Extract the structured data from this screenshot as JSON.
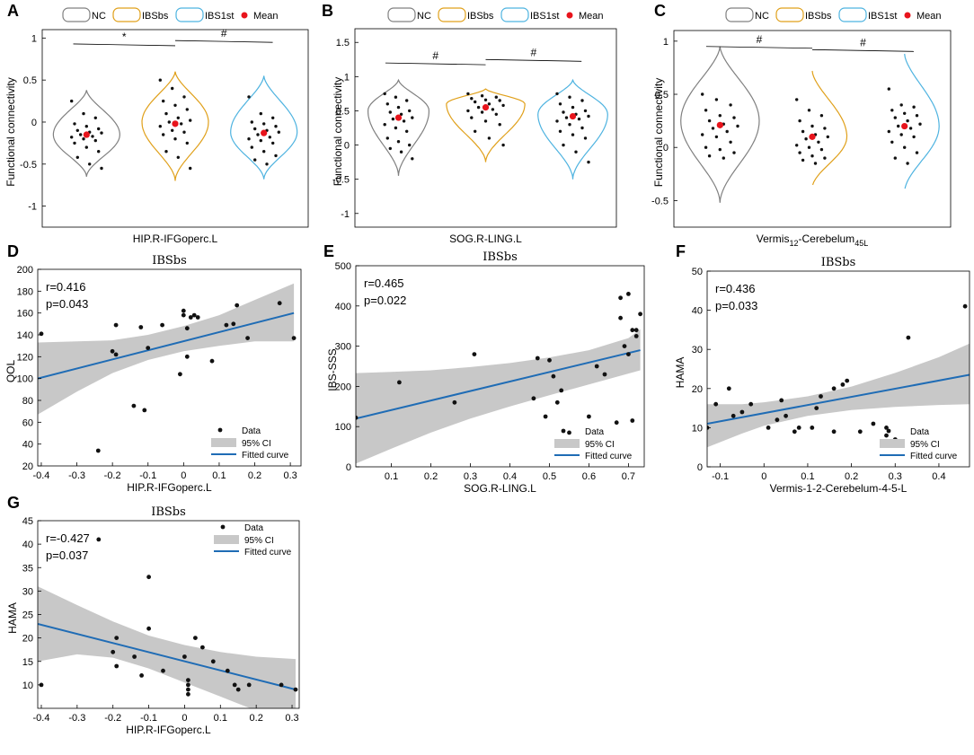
{
  "colors": {
    "NC": "#808080",
    "IBSbs": "#E0A01A",
    "IBS1st": "#4EB3E0",
    "mean": "#E8141C",
    "fit": "#1F6CB5",
    "ci": "#C8C8C8",
    "dot": "#111111"
  },
  "chart_data": [
    {
      "panel": "A",
      "type": "violin",
      "xlabel": "HIP.R-IFGoperc.L",
      "ylabel": "Functional connectivity",
      "ylim": [
        -1.25,
        1.1
      ],
      "yticks": [
        -1,
        -0.5,
        0,
        0.5,
        1
      ],
      "legend": [
        "NC",
        "IBSbs",
        "IBS1st",
        "Mean"
      ],
      "groups": [
        {
          "name": "NC",
          "top": 0.38,
          "bottom": -0.65,
          "mode": -0.15,
          "width": 0.75,
          "mean": -0.15,
          "points": [
            0.25,
            0.1,
            0.05,
            -0.02,
            -0.05,
            -0.08,
            -0.1,
            -0.12,
            -0.13,
            -0.15,
            -0.17,
            -0.18,
            -0.2,
            -0.22,
            -0.25,
            -0.3,
            -0.35,
            -0.42,
            -0.5,
            -0.55
          ]
        },
        {
          "name": "IBSbs",
          "top": 0.6,
          "bottom": -0.7,
          "mode": 0.0,
          "width": 0.75,
          "mean": -0.02,
          "points": [
            0.5,
            0.4,
            0.3,
            0.25,
            0.2,
            0.15,
            0.1,
            0.05,
            0.02,
            0.0,
            -0.02,
            -0.05,
            -0.1,
            -0.12,
            -0.15,
            -0.2,
            -0.25,
            -0.35,
            -0.42,
            -0.55
          ]
        },
        {
          "name": "IBS1st",
          "top": 0.55,
          "bottom": -0.68,
          "mode": -0.12,
          "width": 0.75,
          "mean": -0.13,
          "points": [
            0.3,
            0.1,
            0.05,
            0.0,
            -0.02,
            -0.05,
            -0.08,
            -0.1,
            -0.12,
            -0.15,
            -0.18,
            -0.2,
            -0.22,
            -0.25,
            -0.3,
            -0.35,
            -0.4,
            -0.45,
            -0.5
          ]
        }
      ],
      "sig": [
        {
          "from": 0,
          "to": 1,
          "y": 0.93,
          "label": "*"
        },
        {
          "from": 1,
          "to": 2,
          "y": 0.97,
          "label": "#"
        }
      ]
    },
    {
      "panel": "B",
      "type": "violin",
      "xlabel": "SOG.R-LING.L",
      "ylabel": "Functional connectivity",
      "ylim": [
        -1.2,
        1.7
      ],
      "yticks": [
        -1,
        -0.5,
        0,
        0.5,
        1,
        1.5
      ],
      "legend": [
        "NC",
        "IBSbs",
        "IBS1st",
        "Mean"
      ],
      "groups": [
        {
          "name": "NC",
          "top": 0.95,
          "bottom": -0.45,
          "mode": 0.5,
          "width": 0.7,
          "mean": 0.4,
          "points": [
            0.75,
            0.7,
            0.65,
            0.6,
            0.55,
            0.5,
            0.48,
            0.45,
            0.4,
            0.38,
            0.35,
            0.3,
            0.25,
            0.2,
            0.1,
            0.05,
            0.0,
            -0.05,
            -0.1,
            -0.2
          ]
        },
        {
          "name": "IBSbs",
          "top": 0.82,
          "bottom": -0.25,
          "mode": 0.6,
          "width": 0.9,
          "mean": 0.55,
          "points": [
            0.75,
            0.72,
            0.7,
            0.68,
            0.66,
            0.65,
            0.63,
            0.6,
            0.58,
            0.55,
            0.52,
            0.5,
            0.48,
            0.45,
            0.4,
            0.35,
            0.3,
            0.2,
            0.1,
            0.0
          ]
        },
        {
          "name": "IBS1st",
          "top": 0.95,
          "bottom": -0.5,
          "mode": 0.45,
          "width": 0.8,
          "mean": 0.42,
          "points": [
            0.75,
            0.7,
            0.65,
            0.6,
            0.55,
            0.5,
            0.48,
            0.45,
            0.42,
            0.4,
            0.38,
            0.35,
            0.3,
            0.25,
            0.2,
            0.15,
            0.1,
            0.0,
            -0.1,
            -0.25
          ]
        }
      ],
      "sig": [
        {
          "from": 0,
          "to": 1,
          "y": 1.2,
          "label": "#"
        },
        {
          "from": 1,
          "to": 2,
          "y": 1.25,
          "label": "#"
        }
      ]
    },
    {
      "panel": "C",
      "type": "violin",
      "xlabel": "Vermis",
      "xlabel_sub1": "12",
      "xlabel_mid": "-Cerebelum",
      "xlabel_sub2": "45L",
      "ylabel": "Functional connectivity",
      "ylim": [
        -0.75,
        1.1
      ],
      "yticks": [
        -0.5,
        0,
        0.5,
        1
      ],
      "legend": [
        "NC",
        "IBSbs",
        "IBS1st",
        "Mean"
      ],
      "groups": [
        {
          "name": "NC",
          "top": 0.95,
          "bottom": -0.52,
          "mode": 0.25,
          "width": 0.85,
          "mean": 0.21,
          "points": [
            0.5,
            0.45,
            0.4,
            0.35,
            0.3,
            0.28,
            0.25,
            0.22,
            0.2,
            0.18,
            0.15,
            0.12,
            0.1,
            0.05,
            0.0,
            -0.02,
            -0.05,
            -0.08,
            -0.1
          ]
        },
        {
          "name": "IBSbs",
          "top": 0.72,
          "bottom": -0.38,
          "mode": 0.1,
          "width": 0.75,
          "mean": 0.1,
          "points": [
            0.45,
            0.35,
            0.3,
            0.25,
            0.2,
            0.18,
            0.15,
            0.12,
            0.1,
            0.08,
            0.05,
            0.02,
            0.0,
            -0.02,
            -0.05,
            -0.08,
            -0.1,
            -0.12,
            -0.15
          ]
        },
        {
          "name": "IBS1st",
          "top": 0.88,
          "bottom": -0.42,
          "mode": 0.2,
          "width": 0.75,
          "mean": 0.2,
          "points": [
            0.55,
            0.4,
            0.38,
            0.35,
            0.32,
            0.3,
            0.28,
            0.25,
            0.22,
            0.2,
            0.18,
            0.15,
            0.12,
            0.1,
            0.05,
            0.0,
            -0.05,
            -0.1,
            -0.15
          ]
        }
      ],
      "sig": [
        {
          "from": 0,
          "to": 1,
          "y": 0.95,
          "label": "#"
        },
        {
          "from": 1,
          "to": 2,
          "y": 0.92,
          "label": "#"
        }
      ]
    },
    {
      "panel": "D",
      "type": "scatter",
      "title": "IBSbs",
      "xlabel": "HIP.R-IFGoperc.L",
      "ylabel": "QOL",
      "stat_r": "r=0.416",
      "stat_p": "p=0.043",
      "xlim": [
        -0.41,
        0.33
      ],
      "ylim": [
        20,
        200
      ],
      "xticks": [
        -0.4,
        -0.3,
        -0.2,
        -0.1,
        0,
        0.1,
        0.2,
        0.3
      ],
      "yticks": [
        20,
        40,
        60,
        80,
        100,
        120,
        140,
        160,
        180,
        200
      ],
      "fit": {
        "x0": -0.41,
        "y0": 100,
        "x1": 0.31,
        "y1": 160
      },
      "ci_upper": [
        [
          -0.41,
          133
        ],
        [
          -0.3,
          134
        ],
        [
          -0.2,
          135
        ],
        [
          -0.1,
          140
        ],
        [
          0,
          148
        ],
        [
          0.1,
          158
        ],
        [
          0.2,
          172
        ],
        [
          0.31,
          187
        ]
      ],
      "ci_lower": [
        [
          -0.41,
          67
        ],
        [
          -0.3,
          88
        ],
        [
          -0.2,
          105
        ],
        [
          -0.1,
          117
        ],
        [
          0,
          125
        ],
        [
          0.1,
          130
        ],
        [
          0.2,
          134
        ],
        [
          0.31,
          134
        ]
      ],
      "points": [
        [
          -0.4,
          141
        ],
        [
          -0.24,
          34
        ],
        [
          -0.2,
          125
        ],
        [
          -0.19,
          122
        ],
        [
          -0.19,
          149
        ],
        [
          -0.14,
          75
        ],
        [
          -0.12,
          147
        ],
        [
          -0.11,
          71
        ],
        [
          -0.1,
          128
        ],
        [
          -0.06,
          149
        ],
        [
          -0.01,
          104
        ],
        [
          0.0,
          158
        ],
        [
          0.0,
          162
        ],
        [
          0.01,
          146
        ],
        [
          0.01,
          120
        ],
        [
          0.02,
          156
        ],
        [
          0.03,
          158
        ],
        [
          0.04,
          156
        ],
        [
          0.08,
          116
        ],
        [
          0.12,
          149
        ],
        [
          0.14,
          150
        ],
        [
          0.15,
          167
        ],
        [
          0.18,
          137
        ],
        [
          0.27,
          169
        ],
        [
          0.31,
          137
        ]
      ],
      "legend": [
        "Data",
        "95% CI",
        "Fitted curve"
      ],
      "legend_pos": "bottom-right"
    },
    {
      "panel": "E",
      "type": "scatter",
      "title": "IBSbs",
      "xlabel": "SOG.R-LING.L",
      "ylabel": "IBS-SSS",
      "stat_r": "r=0.465",
      "stat_p": "p=0.022",
      "xlim": [
        0.01,
        0.74
      ],
      "ylim": [
        0,
        500
      ],
      "xticks": [
        0.1,
        0.2,
        0.3,
        0.4,
        0.5,
        0.6,
        0.7
      ],
      "yticks": [
        0,
        100,
        200,
        300,
        400,
        500
      ],
      "fit": {
        "x0": 0.01,
        "y0": 120,
        "x1": 0.73,
        "y1": 290
      },
      "ci_upper": [
        [
          0.01,
          233
        ],
        [
          0.1,
          236
        ],
        [
          0.2,
          240
        ],
        [
          0.3,
          248
        ],
        [
          0.4,
          258
        ],
        [
          0.5,
          272
        ],
        [
          0.6,
          290
        ],
        [
          0.7,
          320
        ],
        [
          0.73,
          342
        ]
      ],
      "ci_lower": [
        [
          0.01,
          8
        ],
        [
          0.1,
          45
        ],
        [
          0.2,
          85
        ],
        [
          0.3,
          120
        ],
        [
          0.4,
          150
        ],
        [
          0.5,
          178
        ],
        [
          0.6,
          205
        ],
        [
          0.7,
          232
        ],
        [
          0.73,
          240
        ]
      ],
      "points": [
        [
          0.01,
          122
        ],
        [
          0.12,
          210
        ],
        [
          0.26,
          160
        ],
        [
          0.31,
          280
        ],
        [
          0.46,
          170
        ],
        [
          0.47,
          270
        ],
        [
          0.49,
          125
        ],
        [
          0.5,
          265
        ],
        [
          0.51,
          225
        ],
        [
          0.52,
          160
        ],
        [
          0.53,
          190
        ],
        [
          0.55,
          85
        ],
        [
          0.6,
          125
        ],
        [
          0.62,
          250
        ],
        [
          0.64,
          230
        ],
        [
          0.67,
          110
        ],
        [
          0.68,
          420
        ],
        [
          0.68,
          370
        ],
        [
          0.69,
          300
        ],
        [
          0.7,
          430
        ],
        [
          0.7,
          280
        ],
        [
          0.71,
          340
        ],
        [
          0.72,
          325
        ],
        [
          0.72,
          340
        ],
        [
          0.71,
          115
        ],
        [
          0.73,
          380
        ]
      ],
      "legend": [
        "Data",
        "95% CI",
        "Fitted curve"
      ],
      "legend_pos": "bottom-right"
    },
    {
      "panel": "F",
      "type": "scatter",
      "title": "IBSbs",
      "xlabel": "Vermis-1-2-Cerebelum-4-5-L",
      "ylabel": "HAMA",
      "stat_r": "r=0.436",
      "stat_p": "p=0.033",
      "xlim": [
        -0.13,
        0.47
      ],
      "ylim": [
        0,
        50
      ],
      "xticks": [
        -0.1,
        0,
        0.1,
        0.2,
        0.3,
        0.4
      ],
      "yticks": [
        0,
        10,
        20,
        30,
        40,
        50
      ],
      "fit": {
        "x0": -0.13,
        "y0": 11,
        "x1": 0.47,
        "y1": 23.5
      },
      "ci_upper": [
        [
          -0.13,
          16
        ],
        [
          -0.05,
          16
        ],
        [
          0.0,
          16.5
        ],
        [
          0.1,
          18
        ],
        [
          0.2,
          20.5
        ],
        [
          0.3,
          24
        ],
        [
          0.4,
          28
        ],
        [
          0.47,
          31.5
        ]
      ],
      "ci_lower": [
        [
          -0.13,
          5
        ],
        [
          -0.05,
          8.5
        ],
        [
          0.0,
          10.5
        ],
        [
          0.1,
          13
        ],
        [
          0.2,
          14.5
        ],
        [
          0.3,
          15.3
        ],
        [
          0.4,
          15.8
        ],
        [
          0.47,
          16
        ]
      ],
      "points": [
        [
          -0.13,
          10
        ],
        [
          -0.11,
          16
        ],
        [
          -0.08,
          20
        ],
        [
          -0.07,
          13
        ],
        [
          -0.05,
          14
        ],
        [
          -0.03,
          16
        ],
        [
          0.01,
          10
        ],
        [
          0.03,
          12
        ],
        [
          0.04,
          17
        ],
        [
          0.05,
          13
        ],
        [
          0.07,
          9
        ],
        [
          0.08,
          10
        ],
        [
          0.11,
          10
        ],
        [
          0.12,
          15
        ],
        [
          0.13,
          18
        ],
        [
          0.16,
          20
        ],
        [
          0.16,
          9
        ],
        [
          0.18,
          21
        ],
        [
          0.19,
          22
        ],
        [
          0.22,
          9
        ],
        [
          0.25,
          11
        ],
        [
          0.28,
          10
        ],
        [
          0.28,
          8
        ],
        [
          0.3,
          7
        ],
        [
          0.33,
          33
        ],
        [
          0.46,
          41
        ]
      ],
      "legend": [
        "Data",
        "95% CI",
        "Fitted curve"
      ],
      "legend_pos": "bottom-right"
    },
    {
      "panel": "G",
      "type": "scatter",
      "title": "IBSbs",
      "xlabel": "HIP.R-IFGoperc.L",
      "ylabel": "HAMA",
      "stat_r": "r=-0.427",
      "stat_p": "p=0.037",
      "xlim": [
        -0.41,
        0.32
      ],
      "ylim": [
        5,
        45
      ],
      "xticks": [
        -0.4,
        -0.3,
        -0.2,
        -0.1,
        0,
        0.1,
        0.2,
        0.3
      ],
      "yticks": [
        10,
        15,
        20,
        25,
        30,
        35,
        40,
        45
      ],
      "fit": {
        "x0": -0.41,
        "y0": 23,
        "x1": 0.31,
        "y1": 9
      },
      "ci_upper": [
        [
          -0.41,
          31
        ],
        [
          -0.3,
          27
        ],
        [
          -0.2,
          23.5
        ],
        [
          -0.1,
          20.5
        ],
        [
          0,
          18.5
        ],
        [
          0.1,
          17
        ],
        [
          0.2,
          16
        ],
        [
          0.31,
          15.5
        ]
      ],
      "ci_lower": [
        [
          -0.41,
          15
        ],
        [
          -0.3,
          16.5
        ],
        [
          -0.2,
          15.8
        ],
        [
          -0.1,
          13.5
        ],
        [
          0,
          10.5
        ],
        [
          0.1,
          7.5
        ],
        [
          0.2,
          4.5
        ],
        [
          0.31,
          2.5
        ]
      ],
      "points": [
        [
          -0.4,
          10
        ],
        [
          -0.24,
          41
        ],
        [
          -0.2,
          17
        ],
        [
          -0.19,
          20
        ],
        [
          -0.19,
          14
        ],
        [
          -0.14,
          16
        ],
        [
          -0.12,
          12
        ],
        [
          -0.1,
          33
        ],
        [
          -0.1,
          22
        ],
        [
          -0.06,
          13
        ],
        [
          0.0,
          16
        ],
        [
          0.01,
          11
        ],
        [
          0.01,
          10
        ],
        [
          0.01,
          9
        ],
        [
          0.01,
          8
        ],
        [
          0.03,
          20
        ],
        [
          0.05,
          18
        ],
        [
          0.08,
          15
        ],
        [
          0.12,
          13
        ],
        [
          0.14,
          10
        ],
        [
          0.15,
          9
        ],
        [
          0.18,
          10
        ],
        [
          0.27,
          10
        ],
        [
          0.31,
          9
        ]
      ],
      "legend": [
        "Data",
        "95% CI",
        "Fitted curve"
      ],
      "legend_pos": "top-right"
    }
  ]
}
